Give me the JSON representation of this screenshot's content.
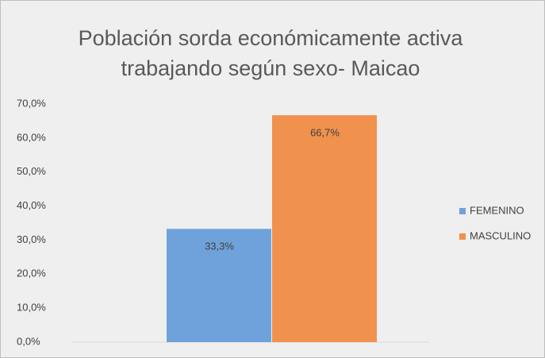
{
  "chart_data": {
    "type": "bar",
    "title": "Población sorda económicamente activa trabajando según sexo- Maicao",
    "categories": [
      null
    ],
    "series": [
      {
        "name": "FEMENINO",
        "color": "#6fa2db",
        "values": [
          33.3
        ],
        "value_labels": [
          "33,3%"
        ]
      },
      {
        "name": "MASCULINO",
        "color": "#f0914e",
        "values": [
          66.7
        ],
        "value_labels": [
          "66,7%"
        ]
      }
    ],
    "ylim": [
      0,
      70
    ],
    "yticks": [
      {
        "value": 0,
        "label": "0,0%"
      },
      {
        "value": 10,
        "label": "10,0%"
      },
      {
        "value": 20,
        "label": "20,0%"
      },
      {
        "value": 30,
        "label": "30,0%"
      },
      {
        "value": 40,
        "label": "40,0%"
      },
      {
        "value": 50,
        "label": "50,0%"
      },
      {
        "value": 60,
        "label": "60,0%"
      },
      {
        "value": 70,
        "label": "70,0%"
      }
    ],
    "grid": false,
    "legend": "right"
  }
}
